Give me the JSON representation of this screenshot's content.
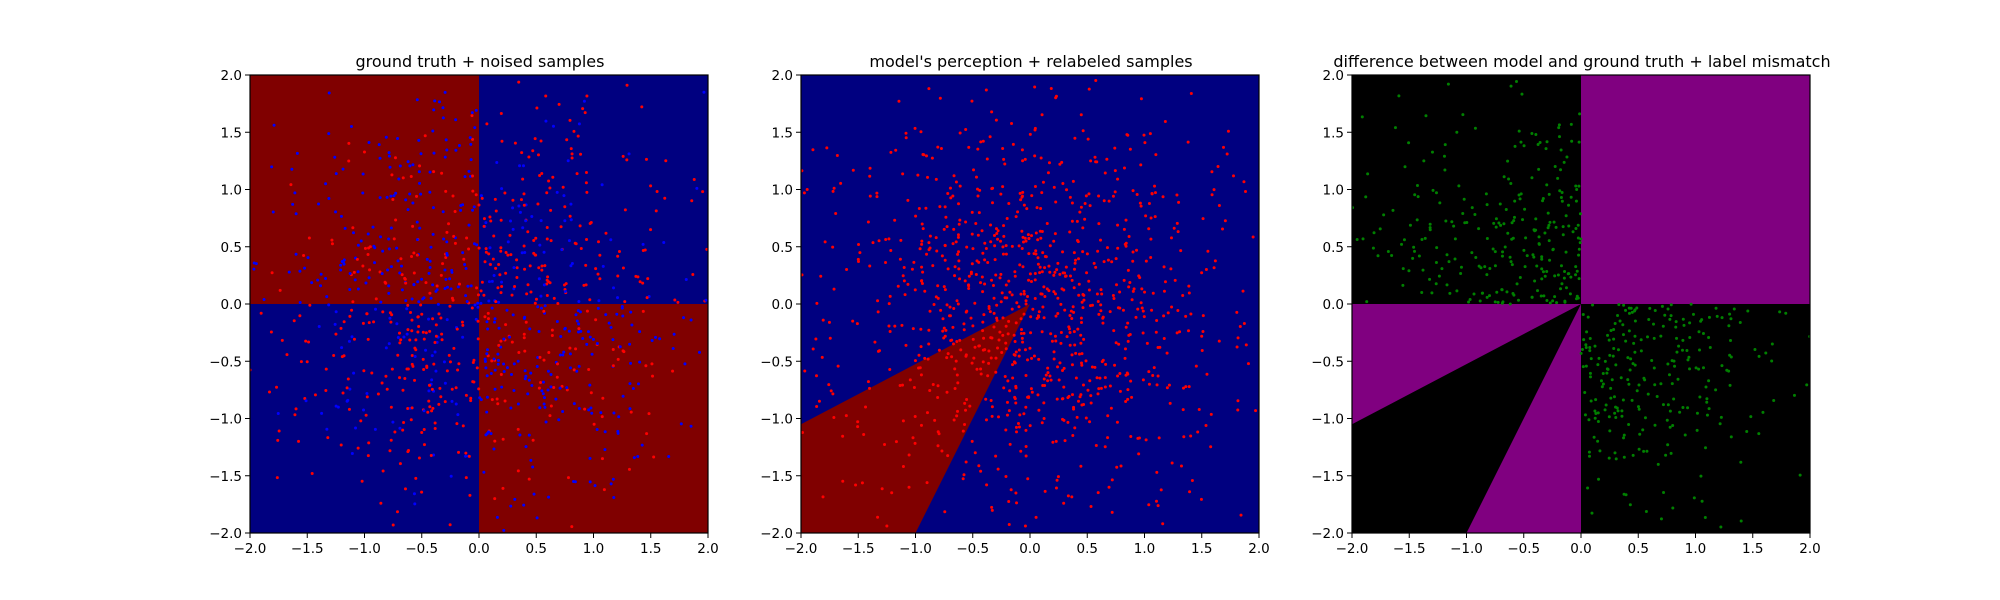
{
  "colors": {
    "class_red": "#800000",
    "class_blue": "#000080",
    "mismatch_purple": "#800080",
    "agree_black": "#000000",
    "sample_red": "#ff0000",
    "sample_blue": "#0000ff",
    "sample_green": "#008000"
  },
  "chart_data": [
    {
      "type": "scatter",
      "title": "ground truth + noised samples",
      "xlabel": "",
      "ylabel": "",
      "xlim": [
        -2.0,
        2.0
      ],
      "ylim": [
        -2.0,
        2.0
      ],
      "xticks": [
        "−2.0",
        "−1.5",
        "−1.0",
        "−0.5",
        "0.0",
        "0.5",
        "1.0",
        "1.5",
        "2.0"
      ],
      "yticks": [
        "−2.0",
        "−1.5",
        "−1.0",
        "−0.5",
        "0.0",
        "0.5",
        "1.0",
        "1.5",
        "2.0"
      ],
      "grid": false,
      "background": "xor-quadrants",
      "regions": [
        {
          "color": "class_red",
          "polygon": [
            [
              -2,
              0
            ],
            [
              0,
              0
            ],
            [
              0,
              2
            ],
            [
              -2,
              2
            ]
          ]
        },
        {
          "color": "class_blue",
          "polygon": [
            [
              0,
              0
            ],
            [
              2,
              0
            ],
            [
              2,
              2
            ],
            [
              0,
              2
            ]
          ]
        },
        {
          "color": "class_blue",
          "polygon": [
            [
              -2,
              -2
            ],
            [
              0,
              -2
            ],
            [
              0,
              0
            ],
            [
              -2,
              0
            ]
          ]
        },
        {
          "color": "class_red",
          "polygon": [
            [
              0,
              -2
            ],
            [
              2,
              -2
            ],
            [
              2,
              0
            ],
            [
              0,
              0
            ]
          ]
        }
      ],
      "samples": {
        "count": 1000,
        "distribution": "gaussian",
        "sigma": 0.9,
        "colors": [
          "sample_red",
          "sample_blue"
        ],
        "color_rule": "mostly-ground-truth"
      }
    },
    {
      "type": "scatter",
      "title": "model's perception + relabeled samples",
      "xlabel": "",
      "ylabel": "",
      "xlim": [
        -2.0,
        2.0
      ],
      "ylim": [
        -2.0,
        2.0
      ],
      "xticks": [
        "−2.0",
        "−1.5",
        "−1.0",
        "−0.5",
        "0.0",
        "0.5",
        "1.0",
        "1.5",
        "2.0"
      ],
      "yticks": [
        "−2.0",
        "−1.5",
        "−1.0",
        "−0.5",
        "0.0",
        "0.5",
        "1.0",
        "1.5",
        "2.0"
      ],
      "grid": false,
      "background": "model-wedge",
      "regions": [
        {
          "color": "class_blue",
          "polygon": [
            [
              -2,
              -2
            ],
            [
              2,
              -2
            ],
            [
              2,
              2
            ],
            [
              -2,
              2
            ]
          ]
        },
        {
          "color": "class_red",
          "polygon": [
            [
              0,
              0
            ],
            [
              -2,
              -1.05
            ],
            [
              -2,
              -2
            ],
            [
              -1.0,
              -2
            ]
          ]
        }
      ],
      "samples": {
        "count": 1000,
        "distribution": "gaussian",
        "sigma": 0.9,
        "colors": [
          "sample_red"
        ],
        "color_rule": "all-red"
      }
    },
    {
      "type": "scatter",
      "title": "difference between model and ground truth + label mismatch",
      "xlabel": "",
      "ylabel": "",
      "xlim": [
        -2.0,
        2.0
      ],
      "ylim": [
        -2.0,
        2.0
      ],
      "xticks": [
        "−2.0",
        "−1.5",
        "−1.0",
        "−0.5",
        "0.0",
        "0.5",
        "1.0",
        "1.5",
        "2.0"
      ],
      "yticks": [
        "−2.0",
        "−1.5",
        "−1.0",
        "−0.5",
        "0.0",
        "0.5",
        "1.0",
        "1.5",
        "2.0"
      ],
      "grid": false,
      "background": "difference",
      "regions": [
        {
          "color": "agree_black",
          "polygon": [
            [
              -2,
              -2
            ],
            [
              2,
              -2
            ],
            [
              2,
              2
            ],
            [
              -2,
              2
            ]
          ]
        },
        {
          "color": "mismatch_purple",
          "polygon": [
            [
              0,
              0
            ],
            [
              2,
              0
            ],
            [
              2,
              2
            ],
            [
              0,
              2
            ]
          ]
        },
        {
          "color": "mismatch_purple",
          "polygon": [
            [
              0,
              0
            ],
            [
              -2,
              0
            ],
            [
              -2,
              -1.05
            ]
          ]
        },
        {
          "color": "mismatch_purple",
          "polygon": [
            [
              0,
              0
            ],
            [
              -1.0,
              -2
            ],
            [
              0,
              -2
            ]
          ]
        }
      ],
      "samples": {
        "count": 520,
        "distribution": "gaussian",
        "sigma": 0.9,
        "colors": [
          "sample_green"
        ],
        "color_rule": "mismatch-only"
      }
    }
  ]
}
